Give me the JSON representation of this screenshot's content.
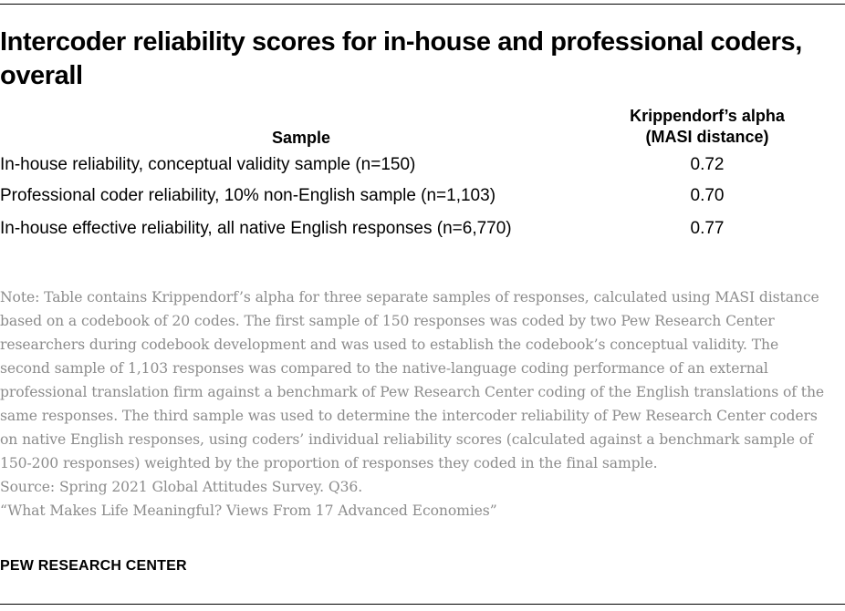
{
  "title": "Intercoder reliability scores for in-house and professional coders, overall",
  "table": {
    "headers": {
      "sample": "Sample",
      "alpha_line1": "Krippendorf’s alpha",
      "alpha_line2": "(MASI distance)"
    },
    "rows": [
      {
        "label": "In-house reliability, conceptual validity sample (n=150)",
        "value": "0.72"
      },
      {
        "label": "Professional coder reliability, 10% non-English sample (n=1,103)",
        "value": "0.70"
      },
      {
        "label": "In-house effective reliability, all native English responses (n=6,770)",
        "value": "0.77"
      }
    ]
  },
  "chart_data": {
    "type": "table",
    "title": "Intercoder reliability scores for in-house and professional coders, overall",
    "columns": [
      "Sample",
      "Krippendorf’s alpha (MASI distance)"
    ],
    "categories": [
      "In-house reliability, conceptual validity sample (n=150)",
      "Professional coder reliability, 10% non-English sample (n=1,103)",
      "In-house effective reliability, all native English responses (n=6,770)"
    ],
    "values": [
      0.72,
      0.7,
      0.77
    ]
  },
  "note": "Note: Table contains Krippendorf’s alpha for three separate samples of responses, calculated using MASI distance based on a codebook of 20 codes. The first sample of 150 responses was coded by two Pew Research Center researchers during codebook development and was used to establish the codebook’s conceptual validity. The second sample of 1,103 responses was compared to the native-language coding performance of an external professional translation firm against a benchmark of Pew Research Center coding of the English translations of the same responses. The third sample was used to determine the intercoder reliability of Pew Research Center coders on native English responses, using coders’ individual reliability scores (calculated against a benchmark sample of 150-200 responses) weighted by the proportion of responses they coded in the final sample.",
  "source": "Source: Spring 2021 Global Attitudes Survey. Q36.",
  "report": "“What Makes Life Meaningful? Views From 17 Advanced Economies”",
  "brand": "PEW RESEARCH CENTER"
}
